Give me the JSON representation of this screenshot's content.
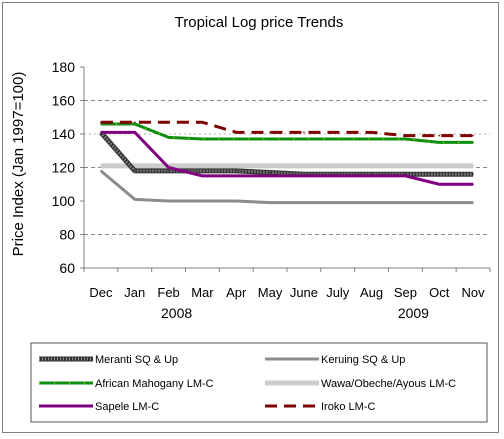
{
  "chart_data": {
    "type": "line",
    "title": "Tropical Log price Trends",
    "xlabel": "",
    "ylabel": "Price Index (Jan 1997=100)",
    "ylim": [
      60,
      180
    ],
    "yticks": [
      "60",
      "80",
      "100",
      "120",
      "140",
      "160",
      "180"
    ],
    "categories": [
      "Dec",
      "Jan",
      "Feb",
      "Mar",
      "Apr",
      "May",
      "June",
      "July",
      "Aug",
      "Sep",
      "Oct",
      "Nov"
    ],
    "year_labels": [
      {
        "label": "2008",
        "category": "Feb"
      },
      {
        "label": "2009",
        "category": "Sep"
      }
    ],
    "grid": "horizontal dashed at 80, 120, 160",
    "legend_position": "bottom",
    "series": [
      {
        "name": "Meranti SQ & Up",
        "color": "#333333",
        "style": "hatched",
        "values": [
          141,
          118,
          118,
          118,
          118,
          117,
          116,
          116,
          116,
          116,
          116,
          116
        ]
      },
      {
        "name": "Keruing SQ & Up",
        "color": "#8c8c8c",
        "style": "solid",
        "values": [
          118,
          101,
          100,
          100,
          100,
          99,
          99,
          99,
          99,
          99,
          99,
          99
        ]
      },
      {
        "name": "African Mahogany LM-C",
        "color": "#0f8f0f",
        "style": "solid-dotted-yellow",
        "values": [
          146,
          146,
          138,
          137,
          137,
          137,
          137,
          137,
          137,
          137,
          135,
          135
        ]
      },
      {
        "name": "Wawa/Obeche/Ayous LM-C",
        "color": "#cccccc",
        "style": "solid",
        "values": [
          121,
          121,
          121,
          121,
          121,
          121,
          121,
          121,
          121,
          121,
          121,
          121
        ]
      },
      {
        "name": "Sapele LM-C",
        "color": "#800080",
        "style": "solid",
        "values": [
          141,
          141,
          120,
          115,
          115,
          115,
          115,
          115,
          115,
          115,
          110,
          110
        ]
      },
      {
        "name": "Iroko LM-C",
        "color": "#7f0000",
        "style": "dashed",
        "values": [
          147,
          147,
          147,
          147,
          141,
          141,
          141,
          141,
          141,
          139,
          139,
          139
        ]
      }
    ]
  }
}
